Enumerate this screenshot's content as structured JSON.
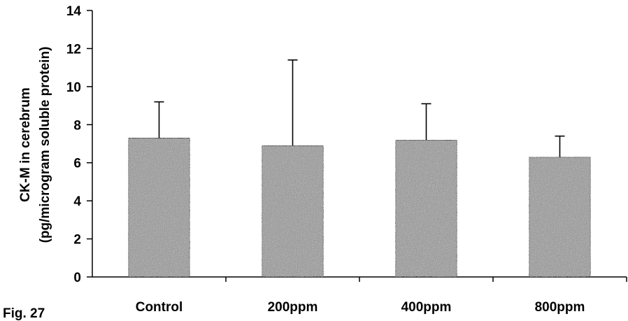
{
  "figure_label": "Fig. 27",
  "chart_data": {
    "type": "bar",
    "categories": [
      "Control",
      "200ppm",
      "400ppm",
      "800ppm"
    ],
    "values": [
      7.3,
      6.9,
      7.2,
      6.3
    ],
    "error_upper": [
      9.2,
      11.4,
      9.1,
      7.4
    ],
    "ylabel_line1": "CK-M in cerebrum",
    "ylabel_line2": "(pg/microgram soluble protein)",
    "xlabel": "",
    "title": "",
    "ylim": [
      0,
      14
    ],
    "yticks": [
      0,
      2,
      4,
      6,
      8,
      10,
      12,
      14
    ],
    "grid": false,
    "bar_color": "#9a9a9a",
    "bar_edge_color": "#000000"
  }
}
